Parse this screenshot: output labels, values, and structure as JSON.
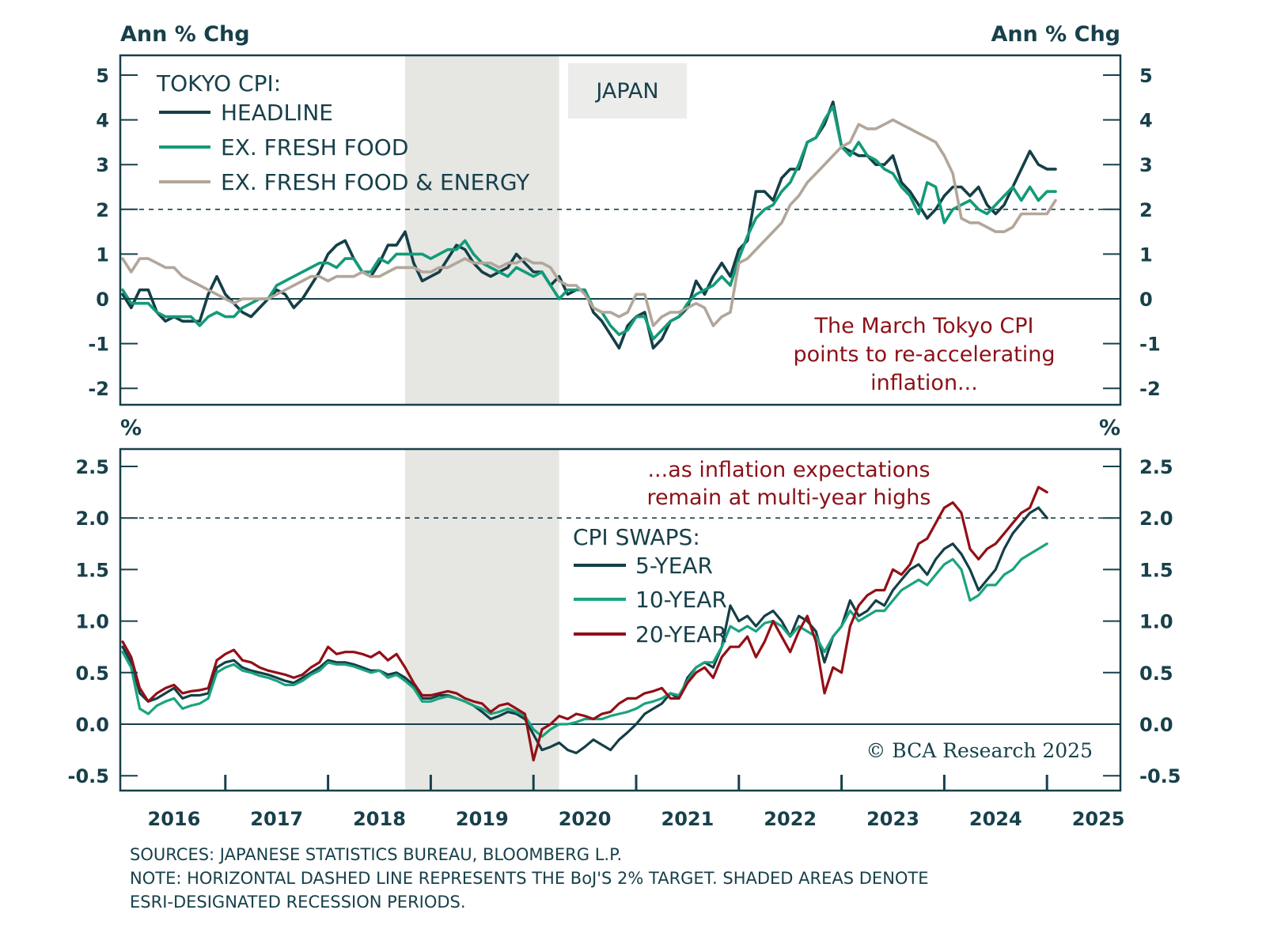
{
  "colors": {
    "headline": "#143f47",
    "ex_fresh_food": "#139b78",
    "ex_fresh_food_energy": "#b2a69a",
    "swap_5y": "#143f47",
    "swap_10y": "#1aa37f",
    "swap_20y": "#930f16",
    "annotation": "#8b1118",
    "recession_shade": "#e6e6e3",
    "axis": "#17404a"
  },
  "chart_data": [
    {
      "type": "line",
      "title": "JAPAN",
      "ylabel_left": "Ann % Chg",
      "ylabel_right": "Ann % Chg",
      "ylim": [
        -2.4,
        5.4
      ],
      "yticks": [
        5,
        4,
        3,
        2,
        1,
        0,
        -1,
        -2
      ],
      "ytick_labels": [
        "5",
        "4",
        "3",
        "2",
        "1",
        "0",
        "-1",
        "-2"
      ],
      "target_line": 2,
      "zero_line": 0,
      "recession_shade": [
        2018.75,
        2020.25
      ],
      "legend": {
        "title": "TOKYO CPI:",
        "position": "top-left"
      },
      "annotation": [
        "The March Tokyo CPI",
        "points to re-accelerating",
        "inflation..."
      ],
      "x_start": 2016.0,
      "x_step_months": 1,
      "series": [
        {
          "name": "HEADLINE",
          "key": "headline",
          "values": [
            0.1,
            -0.2,
            0.2,
            0.2,
            -0.3,
            -0.5,
            -0.4,
            -0.5,
            -0.5,
            -0.5,
            0.1,
            0.5,
            0.1,
            -0.1,
            -0.3,
            -0.4,
            -0.2,
            0.0,
            0.2,
            0.1,
            -0.2,
            0.0,
            0.3,
            0.6,
            1.0,
            1.2,
            1.3,
            0.9,
            0.6,
            0.5,
            0.8,
            1.2,
            1.2,
            1.5,
            0.8,
            0.4,
            0.5,
            0.6,
            0.9,
            1.2,
            1.1,
            0.8,
            0.6,
            0.5,
            0.6,
            0.7,
            1.0,
            0.8,
            0.6,
            0.6,
            0.3,
            0.5,
            0.1,
            0.2,
            0.2,
            -0.3,
            -0.5,
            -0.8,
            -1.1,
            -0.6,
            -0.4,
            -0.3,
            -1.1,
            -0.9,
            -0.5,
            -0.4,
            -0.2,
            0.4,
            0.1,
            0.5,
            0.8,
            0.5,
            1.1,
            1.3,
            2.4,
            2.4,
            2.2,
            2.7,
            2.9,
            2.9,
            3.5,
            3.6,
            3.9,
            4.4,
            3.4,
            3.3,
            3.2,
            3.2,
            3.0,
            3.0,
            3.2,
            2.6,
            2.4,
            2.1,
            1.8,
            2.0,
            2.3,
            2.5,
            2.5,
            2.3,
            2.5,
            2.1,
            1.9,
            2.1,
            2.5,
            2.9,
            3.3,
            3.0,
            2.9,
            2.9
          ]
        },
        {
          "name": "EX. FRESH FOOD",
          "key": "ex_fresh_food",
          "values": [
            0.2,
            -0.1,
            -0.1,
            -0.1,
            -0.3,
            -0.4,
            -0.4,
            -0.4,
            -0.4,
            -0.6,
            -0.4,
            -0.3,
            -0.4,
            -0.4,
            -0.2,
            -0.1,
            0.0,
            0.0,
            0.3,
            0.4,
            0.5,
            0.6,
            0.7,
            0.8,
            0.8,
            0.7,
            0.9,
            0.9,
            0.6,
            0.6,
            0.9,
            0.8,
            1.0,
            1.0,
            1.0,
            1.0,
            0.9,
            1.0,
            1.1,
            1.1,
            1.3,
            1.0,
            0.8,
            0.7,
            0.6,
            0.5,
            0.7,
            0.6,
            0.5,
            0.6,
            0.3,
            0.0,
            0.2,
            0.2,
            0.2,
            -0.2,
            -0.3,
            -0.6,
            -0.8,
            -0.7,
            -0.4,
            -0.4,
            -0.9,
            -0.7,
            -0.5,
            -0.4,
            -0.1,
            0.1,
            0.2,
            0.3,
            0.5,
            0.3,
            0.9,
            1.4,
            1.8,
            2.0,
            2.1,
            2.4,
            2.6,
            3.0,
            3.5,
            3.6,
            4.0,
            4.3,
            3.4,
            3.2,
            3.5,
            3.2,
            3.1,
            2.9,
            2.8,
            2.5,
            2.3,
            1.9,
            2.6,
            2.5,
            1.7,
            2.0,
            2.1,
            2.2,
            2.0,
            1.9,
            2.1,
            2.3,
            2.5,
            2.2,
            2.5,
            2.2,
            2.4,
            2.4
          ]
        },
        {
          "name": "EX. FRESH FOOD & ENERGY",
          "key": "ex_fresh_food_energy",
          "values": [
            0.9,
            0.6,
            0.9,
            0.9,
            0.8,
            0.7,
            0.7,
            0.5,
            0.4,
            0.3,
            0.2,
            0.1,
            0.0,
            -0.1,
            0.0,
            0.0,
            0.0,
            0.0,
            0.1,
            0.2,
            0.3,
            0.4,
            0.5,
            0.5,
            0.4,
            0.5,
            0.5,
            0.5,
            0.6,
            0.5,
            0.5,
            0.6,
            0.7,
            0.7,
            0.7,
            0.6,
            0.6,
            0.7,
            0.7,
            0.8,
            0.9,
            0.8,
            0.8,
            0.8,
            0.7,
            0.8,
            0.8,
            0.9,
            0.8,
            0.8,
            0.7,
            0.4,
            0.3,
            0.3,
            0.1,
            -0.2,
            -0.3,
            -0.3,
            -0.4,
            -0.3,
            0.1,
            0.1,
            -0.6,
            -0.4,
            -0.3,
            -0.3,
            -0.2,
            -0.1,
            -0.2,
            -0.6,
            -0.4,
            -0.3,
            0.8,
            0.9,
            1.1,
            1.3,
            1.5,
            1.7,
            2.1,
            2.3,
            2.6,
            2.8,
            3.0,
            3.2,
            3.4,
            3.5,
            3.9,
            3.8,
            3.8,
            3.9,
            4.0,
            3.9,
            3.8,
            3.7,
            3.6,
            3.5,
            3.2,
            2.8,
            1.8,
            1.7,
            1.7,
            1.6,
            1.5,
            1.5,
            1.6,
            1.9,
            1.9,
            1.9,
            1.9,
            2.2
          ]
        }
      ]
    },
    {
      "type": "line",
      "title": "",
      "ylabel_left": "%",
      "ylabel_right": "%",
      "ylim": [
        -0.65,
        2.6
      ],
      "yticks": [
        2.5,
        2.0,
        1.5,
        1.0,
        0.5,
        0.0,
        -0.5
      ],
      "ytick_labels": [
        "2.5",
        "2.0",
        "1.5",
        "1.0",
        "0.5",
        "0.0",
        "-0.5"
      ],
      "target_line": 2.0,
      "zero_line": 0.0,
      "recession_shade": [
        2018.75,
        2020.25
      ],
      "legend": {
        "title": "CPI SWAPS:",
        "position": "center"
      },
      "annotation": [
        "...as inflation expectations",
        "remain at multi-year highs"
      ],
      "x_start": 2016.0,
      "x_step_months": 1,
      "series": [
        {
          "name": "5-YEAR",
          "key": "swap_5y",
          "values": [
            0.75,
            0.6,
            0.3,
            0.22,
            0.25,
            0.3,
            0.35,
            0.25,
            0.28,
            0.28,
            0.3,
            0.55,
            0.6,
            0.62,
            0.55,
            0.52,
            0.5,
            0.48,
            0.45,
            0.42,
            0.4,
            0.45,
            0.5,
            0.55,
            0.62,
            0.6,
            0.6,
            0.58,
            0.55,
            0.52,
            0.52,
            0.48,
            0.5,
            0.45,
            0.38,
            0.25,
            0.25,
            0.28,
            0.28,
            0.25,
            0.22,
            0.18,
            0.12,
            0.05,
            0.08,
            0.12,
            0.1,
            0.05,
            -0.1,
            -0.25,
            -0.22,
            -0.18,
            -0.25,
            -0.28,
            -0.22,
            -0.15,
            -0.2,
            -0.25,
            -0.15,
            -0.08,
            0.0,
            0.1,
            0.15,
            0.2,
            0.3,
            0.25,
            0.45,
            0.55,
            0.6,
            0.55,
            0.75,
            1.15,
            1.0,
            1.05,
            0.95,
            1.05,
            1.1,
            1.0,
            0.85,
            1.05,
            1.0,
            0.9,
            0.6,
            0.85,
            0.95,
            1.2,
            1.05,
            1.1,
            1.2,
            1.15,
            1.3,
            1.4,
            1.5,
            1.55,
            1.45,
            1.6,
            1.7,
            1.75,
            1.65,
            1.5,
            1.3,
            1.4,
            1.5,
            1.7,
            1.85,
            1.95,
            2.05,
            2.1,
            2.0
          ]
        },
        {
          "name": "10-YEAR",
          "key": "swap_10y",
          "values": [
            0.7,
            0.55,
            0.15,
            0.1,
            0.18,
            0.22,
            0.25,
            0.15,
            0.18,
            0.2,
            0.25,
            0.5,
            0.55,
            0.58,
            0.52,
            0.5,
            0.47,
            0.45,
            0.42,
            0.38,
            0.38,
            0.42,
            0.48,
            0.52,
            0.6,
            0.58,
            0.58,
            0.56,
            0.53,
            0.5,
            0.52,
            0.45,
            0.48,
            0.42,
            0.35,
            0.22,
            0.22,
            0.25,
            0.27,
            0.25,
            0.22,
            0.18,
            0.15,
            0.1,
            0.12,
            0.15,
            0.12,
            0.08,
            -0.05,
            -0.12,
            -0.05,
            0.0,
            0.0,
            0.02,
            0.05,
            0.05,
            0.05,
            0.08,
            0.1,
            0.12,
            0.15,
            0.2,
            0.22,
            0.25,
            0.3,
            0.28,
            0.42,
            0.55,
            0.6,
            0.6,
            0.75,
            0.95,
            0.9,
            0.95,
            0.9,
            0.98,
            1.0,
            0.95,
            0.85,
            0.95,
            0.9,
            0.85,
            0.7,
            0.85,
            0.95,
            1.1,
            1.0,
            1.05,
            1.1,
            1.1,
            1.2,
            1.3,
            1.35,
            1.4,
            1.35,
            1.45,
            1.55,
            1.6,
            1.5,
            1.2,
            1.25,
            1.35,
            1.35,
            1.45,
            1.5,
            1.6,
            1.65,
            1.7,
            1.75
          ]
        },
        {
          "name": "20-YEAR",
          "key": "swap_20y",
          "values": [
            0.8,
            0.65,
            0.35,
            0.22,
            0.3,
            0.35,
            0.38,
            0.3,
            0.32,
            0.33,
            0.35,
            0.62,
            0.68,
            0.72,
            0.62,
            0.6,
            0.55,
            0.52,
            0.5,
            0.48,
            0.45,
            0.48,
            0.55,
            0.6,
            0.75,
            0.68,
            0.7,
            0.7,
            0.68,
            0.65,
            0.7,
            0.62,
            0.68,
            0.55,
            0.4,
            0.28,
            0.28,
            0.3,
            0.32,
            0.3,
            0.25,
            0.22,
            0.2,
            0.12,
            0.18,
            0.2,
            0.15,
            0.1,
            -0.35,
            -0.05,
            0.0,
            0.08,
            0.05,
            0.1,
            0.08,
            0.05,
            0.1,
            0.12,
            0.2,
            0.25,
            0.25,
            0.3,
            0.32,
            0.35,
            0.25,
            0.25,
            0.4,
            0.5,
            0.55,
            0.45,
            0.65,
            0.75,
            0.75,
            0.85,
            0.65,
            0.8,
            1.0,
            0.85,
            0.7,
            0.9,
            1.05,
            0.8,
            0.3,
            0.55,
            0.5,
            0.95,
            1.15,
            1.25,
            1.3,
            1.3,
            1.5,
            1.45,
            1.55,
            1.75,
            1.8,
            1.95,
            2.1,
            2.15,
            2.05,
            1.7,
            1.6,
            1.7,
            1.75,
            1.85,
            1.95,
            2.05,
            2.1,
            2.3,
            2.25
          ]
        }
      ]
    }
  ],
  "x_axis": {
    "years": [
      "2016",
      "2017",
      "2018",
      "2019",
      "2020",
      "2021",
      "2022",
      "2023",
      "2024",
      "2025"
    ]
  },
  "region_label": "JAPAN",
  "legends": {
    "top": {
      "title": "TOKYO CPI:",
      "items": [
        "HEADLINE",
        "EX. FRESH FOOD",
        "EX. FRESH FOOD & ENERGY"
      ]
    },
    "bottom": {
      "title": "CPI SWAPS:",
      "items": [
        "5-YEAR",
        "10-YEAR",
        "20-YEAR"
      ]
    }
  },
  "annotations": {
    "top": [
      "The March Tokyo CPI",
      "points to re-accelerating",
      "inflation..."
    ],
    "bottom": [
      "...as inflation expectations",
      "remain at multi-year highs"
    ]
  },
  "axis_titles": {
    "top_left": "Ann % Chg",
    "top_right": "Ann % Chg",
    "bottom_left": "%",
    "bottom_right": "%"
  },
  "copyright": "© BCA Research 2025",
  "footnotes": [
    "SOURCES: JAPANESE STATISTICS BUREAU, BLOOMBERG L.P.",
    "NOTE: HORIZONTAL DASHED LINE REPRESENTS THE BoJ'S 2% TARGET. SHADED AREAS DENOTE",
    "ESRI-DESIGNATED RECESSION PERIODS."
  ]
}
